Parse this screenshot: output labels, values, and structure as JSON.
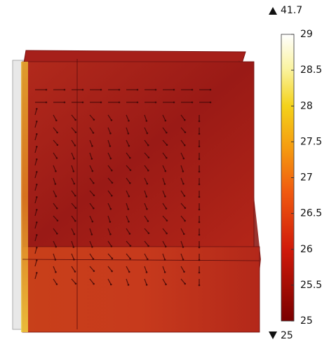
{
  "chart_data": {
    "type": "volume",
    "colorbar": {
      "lim": [
        25,
        29
      ],
      "ticks": [
        25,
        25.5,
        26,
        26.5,
        27,
        27.5,
        28,
        28.5,
        29
      ],
      "max": 41.7,
      "min": 25
    }
  }
}
